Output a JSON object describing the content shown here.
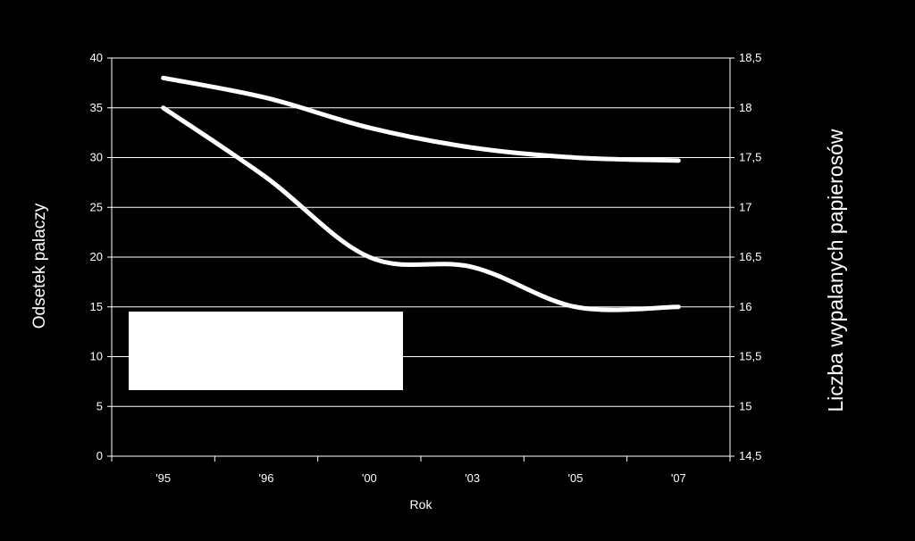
{
  "chart_data": {
    "type": "line",
    "categories": [
      "'95",
      "'96",
      "'00",
      "'03",
      "'05",
      "'07"
    ],
    "xlabel": "Rok",
    "ylabel_left": "Odsetek palaczy",
    "ylabel_right": "Liczba wypalanych papierosów",
    "ylim_left": [
      0,
      40
    ],
    "ylim_right": [
      14.5,
      18.5
    ],
    "yticks_left": [
      "0",
      "5",
      "10",
      "15",
      "20",
      "25",
      "30",
      "35",
      "40"
    ],
    "yticks_right": [
      "14,5",
      "15",
      "15,5",
      "16",
      "16,5",
      "17",
      "17,5",
      "18",
      "18,5"
    ],
    "grid": true,
    "series": [
      {
        "axis": "left",
        "values": [
          35,
          28,
          20,
          19,
          15,
          15
        ]
      },
      {
        "axis": "right",
        "values": [
          18.3,
          18.1,
          17.8,
          17.6,
          17.5,
          17.47
        ]
      }
    ],
    "colors": {
      "background": "#000000",
      "lines": "#ffffff",
      "grid": "#ffffff",
      "legend_box": "#ffffff"
    },
    "legend_placement": "bottom-left (blank white box)"
  }
}
